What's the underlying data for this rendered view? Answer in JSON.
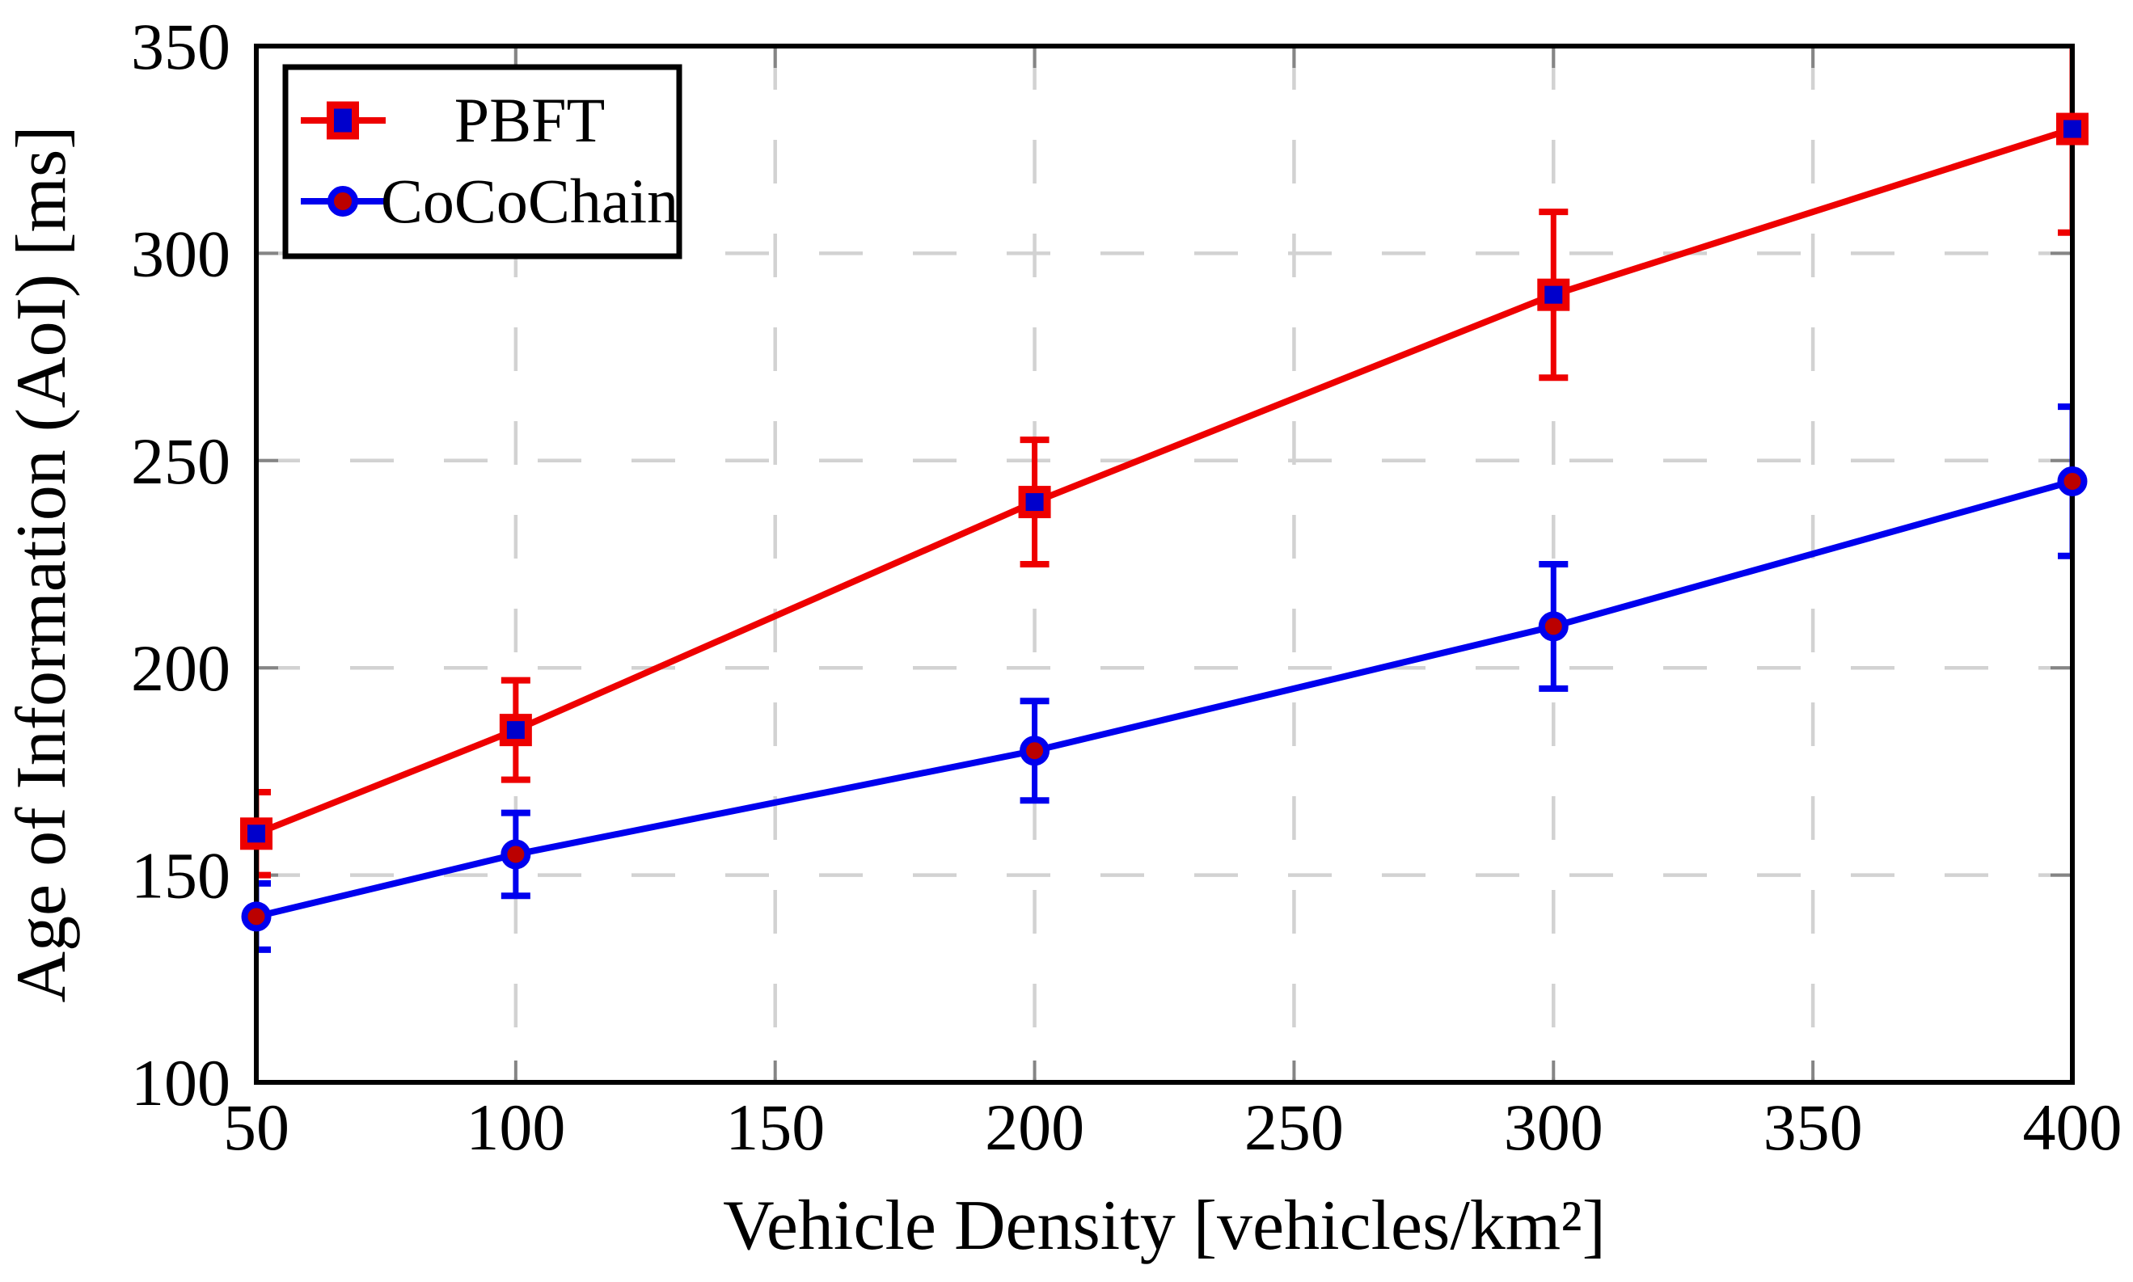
{
  "chart_data": {
    "type": "line",
    "title": "",
    "xlabel": "Vehicle Density [vehicles/km²]",
    "ylabel": "Age of Information (AoI) [ms]",
    "xlim": [
      50,
      400
    ],
    "ylim": [
      100,
      350
    ],
    "xticks": [
      50,
      100,
      150,
      200,
      250,
      300,
      350,
      400
    ],
    "yticks": [
      100,
      150,
      200,
      250,
      300,
      350
    ],
    "grid": "dashed",
    "legend_position": "top-left",
    "x": [
      50,
      100,
      200,
      300,
      400
    ],
    "series": [
      {
        "name": "PBFT",
        "line_color": "#ee0000",
        "marker": "square",
        "marker_fill": "#0000cc",
        "marker_edge": "#ee0000",
        "values": [
          160,
          185,
          240,
          290,
          330
        ],
        "yerr": [
          10,
          12,
          15,
          20,
          25
        ]
      },
      {
        "name": "CoCoChain",
        "line_color": "#0000ee",
        "marker": "circle",
        "marker_fill": "#bb0000",
        "marker_edge": "#0000ee",
        "values": [
          140,
          155,
          180,
          210,
          245
        ],
        "yerr": [
          8,
          10,
          12,
          15,
          18
        ]
      }
    ]
  },
  "colors": {
    "background": "#ffffff",
    "frame": "#000000",
    "grid": "#d2d2d2",
    "tick": "#858585",
    "text": "#000000",
    "legend_border": "#000000",
    "legend_fill": "#ffffff"
  }
}
